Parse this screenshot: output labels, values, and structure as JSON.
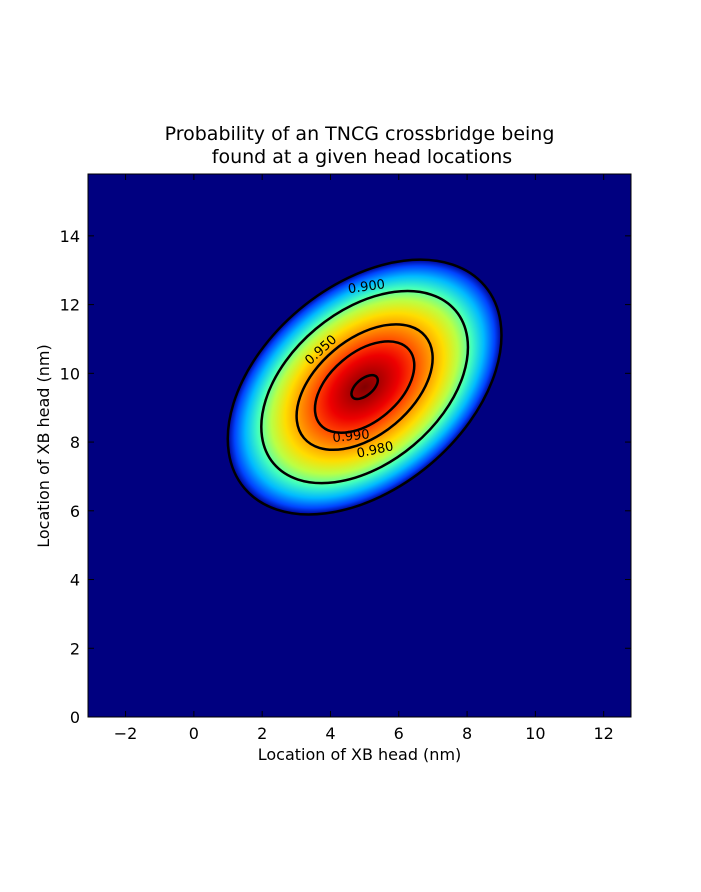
{
  "chart_data": {
    "type": "heatmap",
    "title_lines": [
      "Probability of an TNCG crossbridge being",
      "found at a given head locations"
    ],
    "xlabel": "Location of XB head (nm)",
    "ylabel": "Location of XB head (nm)",
    "xlim": [
      -3.1,
      12.8
    ],
    "ylim": [
      0,
      15.8
    ],
    "xticks": [
      -2,
      0,
      2,
      4,
      6,
      8,
      10,
      12
    ],
    "xtick_labels": [
      "−2",
      "0",
      "2",
      "4",
      "6",
      "8",
      "10",
      "12"
    ],
    "yticks": [
      0,
      2,
      4,
      6,
      8,
      10,
      12,
      14
    ],
    "ytick_labels": [
      "0",
      "2",
      "4",
      "6",
      "8",
      "10",
      "12",
      "14"
    ],
    "colormap": "jet",
    "background_color": "#000080",
    "distribution": {
      "peak_x": 5.0,
      "peak_y": 9.6,
      "orientation_deg": 40,
      "contour_radii": [
        {
          "level": "0.900",
          "major": 4.6,
          "minor": 2.95
        },
        {
          "level": "0.950",
          "major": 3.48,
          "minor": 2.21
        },
        {
          "level": "0.980",
          "major": 2.32,
          "minor": 1.39
        },
        {
          "level": "0.990",
          "major": 1.7,
          "minor": 1.0
        },
        {
          "level": "",
          "major": 0.46,
          "minor": 0.24
        }
      ]
    },
    "contour_labels": [
      {
        "text": "0.900",
        "x": 5.05,
        "y": 12.55,
        "angle": -8
      },
      {
        "text": "0.950",
        "x": 3.7,
        "y": 10.7,
        "angle": -42
      },
      {
        "text": "0.990",
        "x": 4.6,
        "y": 8.2,
        "angle": -6
      },
      {
        "text": "0.980",
        "x": 5.3,
        "y": 7.8,
        "angle": -12
      }
    ],
    "grid": false
  }
}
